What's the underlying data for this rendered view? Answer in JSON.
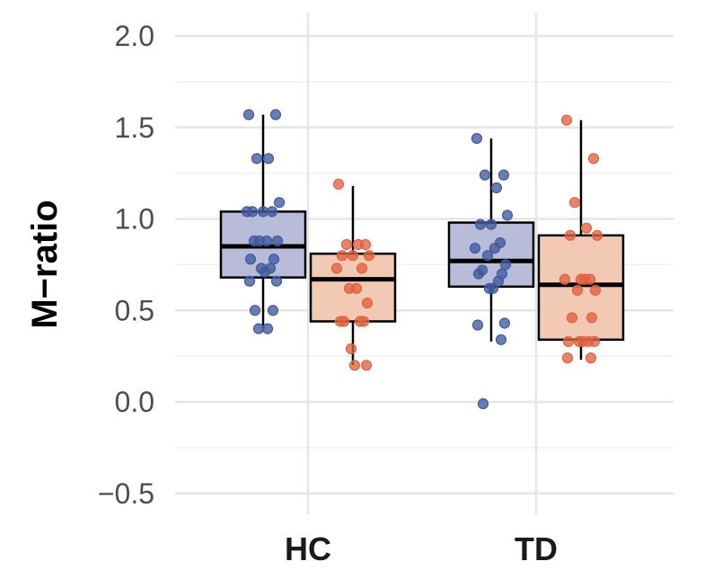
{
  "chart_data": {
    "type": "box",
    "title": "",
    "xlabel": "",
    "ylabel": "M−ratio",
    "ylim": [
      -0.6,
      2.1
    ],
    "yticks": [
      -0.5,
      0.0,
      0.5,
      1.0,
      1.5,
      2.0
    ],
    "ytick_labels": [
      "−0.5",
      "0.0",
      "0.5",
      "1.0",
      "1.5",
      "2.0"
    ],
    "categories": [
      "HC",
      "TD"
    ],
    "grid": true,
    "legend": "none",
    "series": [
      {
        "color": "#3f5a9e",
        "fill": "#b9bcd9",
        "boxes": [
          {
            "category": "HC",
            "q1": 0.68,
            "median": 0.85,
            "q3": 1.04,
            "whisker_low": 0.39,
            "whisker_high": 1.57
          },
          {
            "category": "TD",
            "q1": 0.63,
            "median": 0.77,
            "q3": 0.98,
            "whisker_low": 0.33,
            "whisker_high": 1.44
          }
        ],
        "points": [
          {
            "category": "HC",
            "values": [
              1.57,
              1.57,
              1.33,
              1.33,
              1.09,
              1.04,
              1.04,
              1.04,
              1.04,
              0.88,
              0.88,
              0.88,
              0.88,
              0.78,
              0.78,
              0.73,
              0.73,
              0.71,
              0.66,
              0.66,
              0.5,
              0.5,
              0.4,
              0.4
            ]
          },
          {
            "category": "TD",
            "values": [
              1.44,
              1.24,
              1.24,
              1.17,
              1.02,
              0.97,
              0.97,
              0.87,
              0.84,
              0.84,
              0.8,
              0.75,
              0.72,
              0.7,
              0.7,
              0.66,
              0.62,
              0.62,
              0.43,
              0.42,
              0.34,
              -0.01
            ]
          }
        ]
      },
      {
        "color": "#e0623f",
        "fill": "#f2c9b3",
        "boxes": [
          {
            "category": "HC",
            "q1": 0.44,
            "median": 0.67,
            "q3": 0.81,
            "whisker_low": 0.2,
            "whisker_high": 1.18
          },
          {
            "category": "TD",
            "q1": 0.34,
            "median": 0.64,
            "q3": 0.91,
            "whisker_low": 0.23,
            "whisker_high": 1.54
          }
        ],
        "points": [
          {
            "category": "HC",
            "values": [
              1.19,
              0.86,
              0.86,
              0.86,
              0.8,
              0.8,
              0.8,
              0.73,
              0.73,
              0.62,
              0.62,
              0.54,
              0.44,
              0.44,
              0.44,
              0.44,
              0.29,
              0.2,
              0.2
            ]
          },
          {
            "category": "TD",
            "values": [
              1.54,
              1.33,
              1.09,
              0.95,
              0.91,
              0.91,
              0.67,
              0.67,
              0.67,
              0.67,
              0.61,
              0.61,
              0.46,
              0.46,
              0.33,
              0.33,
              0.33,
              0.33,
              0.33,
              0.24,
              0.24
            ]
          }
        ]
      }
    ]
  }
}
